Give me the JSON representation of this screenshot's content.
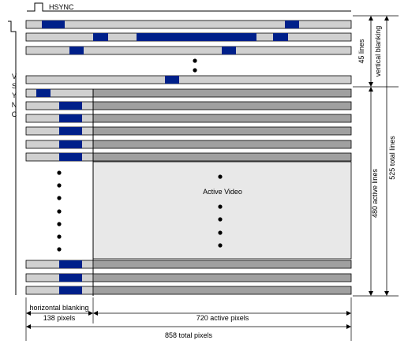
{
  "labels": {
    "hsync": "HSYNC",
    "vsync": [
      "V",
      "S",
      "Y",
      "N",
      "C"
    ],
    "vertical_blanking_lines": "45 lines",
    "vertical_blanking": "vertical blanking",
    "active_lines": "480 active lines",
    "total_lines": "525 total lines",
    "active_video": "Active Video",
    "horizontal_blanking": "horizontal blanking",
    "blanking_pixels": "138 pixels",
    "active_pixels": "720 active pixels",
    "total_pixels": "858 total pixels"
  },
  "colors": {
    "blanking_bar": "#d0d0d0",
    "active_bar": "#a0a0a0",
    "sync_pulse": "#00208a",
    "active_region": "#e8e8e8",
    "stroke": "#000000"
  }
}
